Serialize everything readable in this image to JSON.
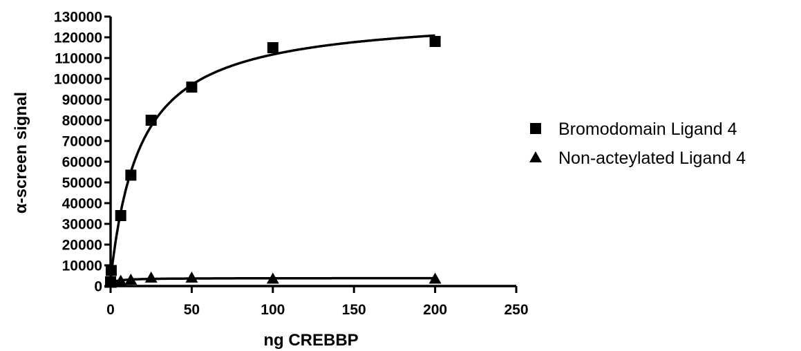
{
  "chart_data": {
    "type": "scatter",
    "xlabel": "ng CREBBP",
    "ylabel": "α-screen signal",
    "xlim": [
      0,
      250
    ],
    "ylim": [
      0,
      130000
    ],
    "xticks": [
      0,
      50,
      100,
      150,
      200,
      250
    ],
    "yticks": [
      0,
      10000,
      20000,
      30000,
      40000,
      50000,
      60000,
      70000,
      80000,
      90000,
      100000,
      110000,
      120000,
      130000
    ],
    "grid": false,
    "legend_position": "right",
    "series": [
      {
        "name": "Bromodomain Ligand 4",
        "marker": "square",
        "color": "#000000",
        "x": [
          0,
          0.4,
          6.25,
          12.5,
          25,
          50,
          100,
          200
        ],
        "y": [
          2000,
          7500,
          34000,
          53500,
          80000,
          96000,
          115000,
          118000
        ],
        "fit": "hyperbolic"
      },
      {
        "name": "Non-acteylated Ligand 4",
        "marker": "triangle",
        "color": "#000000",
        "x": [
          0,
          6.25,
          12.5,
          25,
          50,
          100,
          200
        ],
        "y": [
          1500,
          2500,
          3000,
          4000,
          4000,
          3500,
          3500
        ],
        "fit": "hyperbolic"
      }
    ]
  }
}
